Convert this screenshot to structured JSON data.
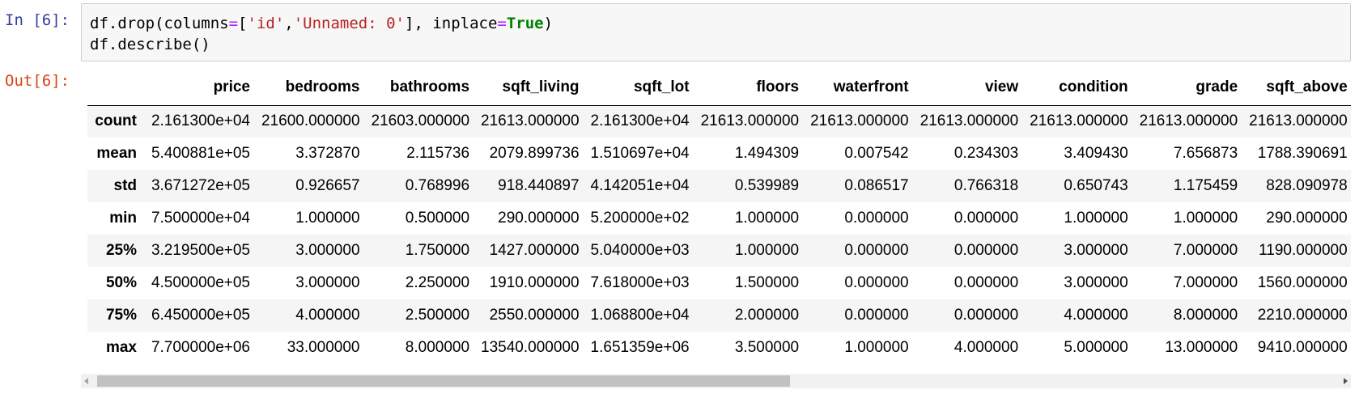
{
  "input_cell": {
    "prompt": "In [6]:",
    "code_line1": {
      "p1": "df.drop(columns",
      "op1": "=",
      "p2": "[",
      "s1": "'id'",
      "p3": ",",
      "s2": "'Unnamed: 0'",
      "p4": "], inplace",
      "op2": "=",
      "kw1": "True",
      "p5": ")"
    },
    "code_line2": "df.describe()"
  },
  "output_cell": {
    "prompt": "Out[6]:",
    "table": {
      "columns": [
        "",
        "price",
        "bedrooms",
        "bathrooms",
        "sqft_living",
        "sqft_lot",
        "floors",
        "waterfront",
        "view",
        "condition",
        "grade",
        "sqft_above"
      ],
      "rows": [
        [
          "count",
          "2.161300e+04",
          "21600.000000",
          "21603.000000",
          "21613.000000",
          "2.161300e+04",
          "21613.000000",
          "21613.000000",
          "21613.000000",
          "21613.000000",
          "21613.000000",
          "21613.000000"
        ],
        [
          "mean",
          "5.400881e+05",
          "3.372870",
          "2.115736",
          "2079.899736",
          "1.510697e+04",
          "1.494309",
          "0.007542",
          "0.234303",
          "3.409430",
          "7.656873",
          "1788.390691"
        ],
        [
          "std",
          "3.671272e+05",
          "0.926657",
          "0.768996",
          "918.440897",
          "4.142051e+04",
          "0.539989",
          "0.086517",
          "0.766318",
          "0.650743",
          "1.175459",
          "828.090978"
        ],
        [
          "min",
          "7.500000e+04",
          "1.000000",
          "0.500000",
          "290.000000",
          "5.200000e+02",
          "1.000000",
          "0.000000",
          "0.000000",
          "1.000000",
          "1.000000",
          "290.000000"
        ],
        [
          "25%",
          "3.219500e+05",
          "3.000000",
          "1.750000",
          "1427.000000",
          "5.040000e+03",
          "1.000000",
          "0.000000",
          "0.000000",
          "3.000000",
          "7.000000",
          "1190.000000"
        ],
        [
          "50%",
          "4.500000e+05",
          "3.000000",
          "2.250000",
          "1910.000000",
          "7.618000e+03",
          "1.500000",
          "0.000000",
          "0.000000",
          "3.000000",
          "7.000000",
          "1560.000000"
        ],
        [
          "75%",
          "6.450000e+05",
          "4.000000",
          "2.500000",
          "2550.000000",
          "1.068800e+04",
          "2.000000",
          "0.000000",
          "0.000000",
          "4.000000",
          "8.000000",
          "2210.000000"
        ],
        [
          "max",
          "7.700000e+06",
          "33.000000",
          "8.000000",
          "13540.000000",
          "1.651359e+06",
          "3.500000",
          "1.000000",
          "4.000000",
          "5.000000",
          "13.000000",
          "9410.000000"
        ]
      ]
    },
    "scrollbar": {
      "position_fraction": 0.0,
      "visible_fraction": 0.56
    }
  },
  "colors": {
    "prompt_in": "#303f9f",
    "prompt_out": "#d84315",
    "string": "#ba2121",
    "operator": "#aa22ff",
    "keyword": "#008000"
  }
}
